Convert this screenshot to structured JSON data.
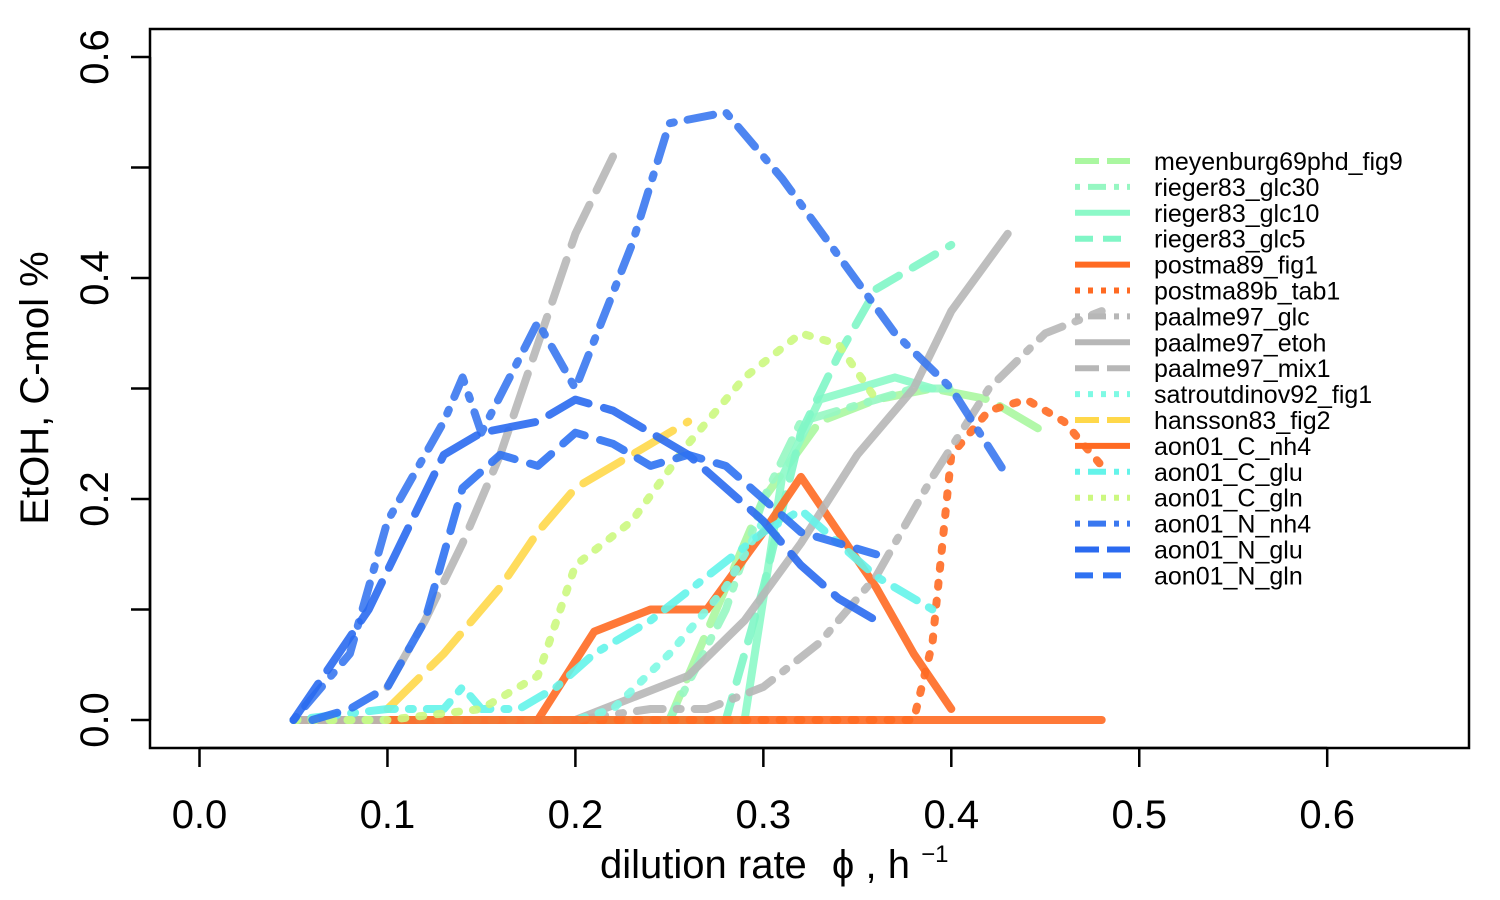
{
  "chart_data": {
    "type": "line",
    "xlabel": "dilution rate",
    "xlabel_symbol": "ϕ",
    "xlabel_unit": "h",
    "xlabel_unit_exp": "−1",
    "ylabel": "EtOH, C-mol %",
    "xlim": [
      0.0,
      0.65
    ],
    "ylim": [
      0.0,
      0.6
    ],
    "x_ticks": [
      0.0,
      0.1,
      0.2,
      0.3,
      0.4,
      0.5,
      0.6
    ],
    "x_tick_labels": [
      "0.0",
      "0.1",
      "0.2",
      "0.3",
      "0.4",
      "0.5",
      "0.6"
    ],
    "y_ticks": [
      0.0,
      0.2,
      0.4,
      0.6
    ],
    "y_tick_labels": [
      "0.0",
      "0.2",
      "0.4",
      "0.6"
    ],
    "y_minor_ticks": [
      0.1,
      0.3,
      0.5
    ],
    "grid": false,
    "legend_position": "right",
    "series": [
      {
        "name": "meyenburg69phd_fig9",
        "color": "#aaf7a0",
        "dash": "longdash",
        "x": [
          0.05,
          0.1,
          0.15,
          0.2,
          0.25,
          0.27,
          0.3,
          0.33,
          0.36,
          0.39,
          0.42,
          0.45
        ],
        "y": [
          0,
          0,
          0,
          0,
          0,
          0.08,
          0.2,
          0.27,
          0.29,
          0.3,
          0.29,
          0.26
        ]
      },
      {
        "name": "rieger83_glc30",
        "color": "#96f7c2",
        "dash": "dashdot",
        "x": [
          0.05,
          0.1,
          0.15,
          0.2,
          0.25,
          0.28,
          0.3,
          0.32,
          0.34,
          0.36,
          0.38,
          0.4
        ],
        "y": [
          0,
          0,
          0,
          0,
          0,
          0.1,
          0.2,
          0.27,
          0.28,
          0.29,
          0.3,
          0.3
        ]
      },
      {
        "name": "rieger83_glc10",
        "color": "#8cf9c8",
        "dash": "solid",
        "x": [
          0.1,
          0.15,
          0.2,
          0.25,
          0.29,
          0.31,
          0.33,
          0.35,
          0.37,
          0.39
        ],
        "y": [
          0,
          0,
          0,
          0,
          0,
          0.22,
          0.29,
          0.3,
          0.31,
          0.3
        ]
      },
      {
        "name": "rieger83_glc5",
        "color": "#80f6c6",
        "dash": "dashed",
        "x": [
          0.1,
          0.15,
          0.2,
          0.25,
          0.28,
          0.3,
          0.32,
          0.34,
          0.36,
          0.38,
          0.4
        ],
        "y": [
          0,
          0,
          0,
          0,
          0,
          0.12,
          0.26,
          0.33,
          0.39,
          0.41,
          0.43
        ]
      },
      {
        "name": "postma89_fig1",
        "color": "#ff6a22",
        "dash": "solid",
        "x": [
          0.05,
          0.1,
          0.15,
          0.18,
          0.21,
          0.24,
          0.27,
          0.3,
          0.32,
          0.34,
          0.36,
          0.38,
          0.4
        ],
        "y": [
          0,
          0,
          0,
          0,
          0.08,
          0.1,
          0.1,
          0.17,
          0.22,
          0.17,
          0.12,
          0.06,
          0.01
        ]
      },
      {
        "name": "postma89b_tab1",
        "color": "#ff6a22",
        "dash": "dotted",
        "x": [
          0.05,
          0.1,
          0.15,
          0.2,
          0.25,
          0.3,
          0.35,
          0.38,
          0.39,
          0.4,
          0.42,
          0.44,
          0.46,
          0.48
        ],
        "y": [
          0,
          0,
          0,
          0,
          0,
          0,
          0,
          0,
          0.07,
          0.24,
          0.28,
          0.29,
          0.27,
          0.23
        ]
      },
      {
        "name": "paalme97_glc",
        "color": "#b7b7b7",
        "dash": "dashdot",
        "x": [
          0.1,
          0.15,
          0.2,
          0.24,
          0.27,
          0.3,
          0.33,
          0.36,
          0.39,
          0.42,
          0.45,
          0.48
        ],
        "y": [
          0,
          0,
          0,
          0.01,
          0.01,
          0.03,
          0.07,
          0.13,
          0.22,
          0.3,
          0.35,
          0.37
        ]
      },
      {
        "name": "paalme97_etoh",
        "color": "#b7b7b7",
        "dash": "solid",
        "x": [
          0.05,
          0.1,
          0.15,
          0.2,
          0.23,
          0.26,
          0.29,
          0.32,
          0.35,
          0.38,
          0.4,
          0.43
        ],
        "y": [
          0,
          0,
          0,
          0,
          0.02,
          0.04,
          0.09,
          0.16,
          0.24,
          0.3,
          0.37,
          0.44
        ]
      },
      {
        "name": "paalme97_mix1",
        "color": "#b7b7b7",
        "dash": "longdash",
        "x": [
          0.1,
          0.12,
          0.14,
          0.16,
          0.18,
          0.2,
          0.22
        ],
        "y": [
          0.03,
          0.09,
          0.16,
          0.24,
          0.34,
          0.44,
          0.51
        ]
      },
      {
        "name": "satroutdinov92_fig1",
        "color": "#7efae4",
        "dash": "dotted",
        "x": [
          0.05,
          0.1,
          0.15,
          0.2,
          0.22,
          0.25,
          0.28,
          0.3
        ],
        "y": [
          0,
          0,
          0,
          0,
          0.01,
          0.06,
          0.12,
          0.18
        ]
      },
      {
        "name": "hansson83_fig2",
        "color": "#ffd84a",
        "dash": "longdash",
        "x": [
          0.1,
          0.13,
          0.16,
          0.18,
          0.2,
          0.22,
          0.24,
          0.26
        ],
        "y": [
          0.01,
          0.06,
          0.12,
          0.17,
          0.21,
          0.23,
          0.25,
          0.27
        ]
      },
      {
        "name": "aon01_C_nh4",
        "color": "#ff6a22",
        "dash": "solid",
        "x": [
          0.1,
          0.2,
          0.3,
          0.38,
          0.4,
          0.42,
          0.44,
          0.46,
          0.48
        ],
        "y": [
          0,
          0,
          0,
          0,
          0,
          0,
          0,
          0,
          0
        ]
      },
      {
        "name": "aon01_C_glu",
        "color": "#64f4ea",
        "dash": "dashdot",
        "x": [
          0.05,
          0.1,
          0.13,
          0.14,
          0.15,
          0.17,
          0.19,
          0.21,
          0.24,
          0.27,
          0.3,
          0.32,
          0.34,
          0.36,
          0.39
        ],
        "y": [
          0,
          0.01,
          0.01,
          0.03,
          0.01,
          0.01,
          0.03,
          0.06,
          0.09,
          0.13,
          0.17,
          0.19,
          0.16,
          0.13,
          0.1
        ]
      },
      {
        "name": "aon01_C_gln",
        "color": "#ccf880",
        "dash": "dotted",
        "x": [
          0.05,
          0.1,
          0.15,
          0.18,
          0.2,
          0.23,
          0.26,
          0.29,
          0.32,
          0.34,
          0.36
        ],
        "y": [
          0,
          0,
          0.01,
          0.04,
          0.14,
          0.18,
          0.25,
          0.31,
          0.35,
          0.34,
          0.29
        ]
      },
      {
        "name": "aon01_N_nh4",
        "color": "#3a78f0",
        "dash": "dashdot",
        "x": [
          0.05,
          0.08,
          0.1,
          0.13,
          0.14,
          0.15,
          0.18,
          0.2,
          0.23,
          0.25,
          0.28,
          0.31,
          0.34,
          0.37,
          0.4,
          0.43
        ],
        "y": [
          0,
          0.06,
          0.18,
          0.27,
          0.31,
          0.26,
          0.36,
          0.3,
          0.43,
          0.54,
          0.55,
          0.49,
          0.42,
          0.35,
          0.3,
          0.22
        ]
      },
      {
        "name": "aon01_N_glu",
        "color": "#2a6af0",
        "dash": "longdash",
        "x": [
          0.05,
          0.07,
          0.09,
          0.11,
          0.13,
          0.15,
          0.18,
          0.2,
          0.22,
          0.24,
          0.26,
          0.28,
          0.3,
          0.32,
          0.34,
          0.36
        ],
        "y": [
          0,
          0.05,
          0.1,
          0.17,
          0.24,
          0.26,
          0.27,
          0.29,
          0.28,
          0.26,
          0.24,
          0.21,
          0.18,
          0.14,
          0.11,
          0.09
        ]
      },
      {
        "name": "aon01_N_gln",
        "color": "#2f72f2",
        "dash": "dashed",
        "x": [
          0.06,
          0.08,
          0.1,
          0.12,
          0.14,
          0.16,
          0.18,
          0.2,
          0.22,
          0.24,
          0.26,
          0.28,
          0.3,
          0.32,
          0.34,
          0.36
        ],
        "y": [
          0,
          0.01,
          0.03,
          0.09,
          0.21,
          0.24,
          0.23,
          0.26,
          0.25,
          0.23,
          0.24,
          0.23,
          0.2,
          0.17,
          0.16,
          0.15
        ]
      }
    ]
  }
}
